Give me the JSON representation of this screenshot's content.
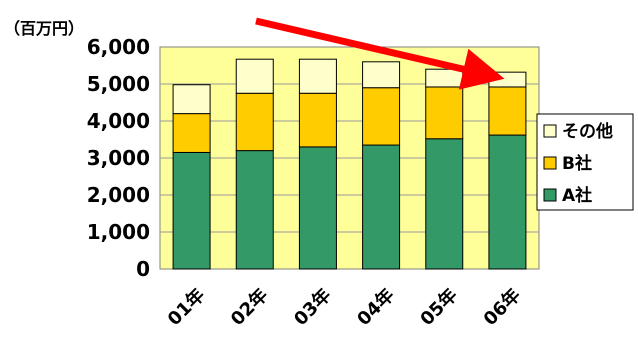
{
  "chart_data": {
    "type": "bar",
    "stacked": true,
    "unit_label": "（百万円）",
    "categories": [
      "01年",
      "02年",
      "03年",
      "04年",
      "05年",
      "06年"
    ],
    "series": [
      {
        "name": "A社",
        "values": [
          3150,
          3200,
          3300,
          3350,
          3520,
          3620
        ],
        "color": "#339966"
      },
      {
        "name": "B社",
        "values": [
          1050,
          1550,
          1450,
          1550,
          1400,
          1300
        ],
        "color": "#FFCC00"
      },
      {
        "name": "その他",
        "values": [
          780,
          920,
          920,
          700,
          480,
          400
        ],
        "color": "#FFFFCC"
      }
    ],
    "ylim": [
      0,
      6000
    ],
    "yticks": [
      "0",
      "1,000",
      "2,000",
      "3,000",
      "4,000",
      "5,000",
      "6,000"
    ],
    "ytick_values": [
      0,
      1000,
      2000,
      3000,
      4000,
      5000,
      6000
    ],
    "plot_background": "#FFFF99",
    "legend_position": "right",
    "legend_order": [
      "その他",
      "B社",
      "A社"
    ],
    "annotation": {
      "type": "arrow",
      "color": "#FF0000",
      "description": "downward trend arrow toward 06年"
    }
  }
}
